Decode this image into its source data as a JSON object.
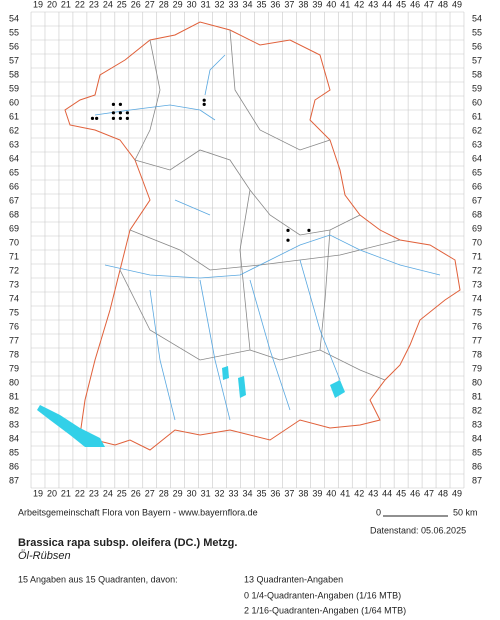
{
  "map": {
    "columns": [
      19,
      20,
      21,
      22,
      23,
      24,
      25,
      26,
      27,
      28,
      29,
      30,
      31,
      32,
      33,
      34,
      35,
      36,
      37,
      38,
      39,
      40,
      41,
      42,
      43,
      44,
      45,
      46,
      47,
      48,
      49
    ],
    "rows": [
      54,
      55,
      56,
      57,
      58,
      59,
      60,
      61,
      62,
      63,
      64,
      65,
      66,
      67,
      68,
      69,
      70,
      71,
      72,
      73,
      74,
      75,
      76,
      77,
      78,
      79,
      80,
      81,
      82,
      83,
      84,
      85,
      86,
      87
    ],
    "records": [
      {
        "x": 24.4,
        "y": 60.1
      },
      {
        "x": 24.9,
        "y": 60.1
      },
      {
        "x": 24.4,
        "y": 60.7
      },
      {
        "x": 24.9,
        "y": 60.7
      },
      {
        "x": 25.4,
        "y": 60.7
      },
      {
        "x": 22.9,
        "y": 61.1
      },
      {
        "x": 23.2,
        "y": 61.1
      },
      {
        "x": 24.4,
        "y": 61.1
      },
      {
        "x": 24.9,
        "y": 61.1
      },
      {
        "x": 25.4,
        "y": 61.1
      },
      {
        "x": 30.9,
        "y": 59.8
      },
      {
        "x": 30.9,
        "y": 60.1
      },
      {
        "x": 36.9,
        "y": 69.1
      },
      {
        "x": 36.9,
        "y": 69.8
      },
      {
        "x": 38.4,
        "y": 69.1
      }
    ],
    "scale": {
      "start": "0",
      "end": "50 km"
    }
  },
  "footer": {
    "credit": "Arbeitsgemeinschaft Flora von Bayern - www.bayernflora.de",
    "date": "Datenstand: 05.06.2025",
    "title": "Brassica rapa subsp. oleifera (DC.) Metzg.",
    "subtitle": "Öl-Rübsen",
    "summary": "15 Angaben aus 15 Quadranten, davon:",
    "details": [
      "13 Quadranten-Angaben",
      "0 1/4-Quadranten-Angaben (1/16 MTB)",
      "2 1/16-Quadranten-Angaben (1/64 MTB)"
    ]
  }
}
